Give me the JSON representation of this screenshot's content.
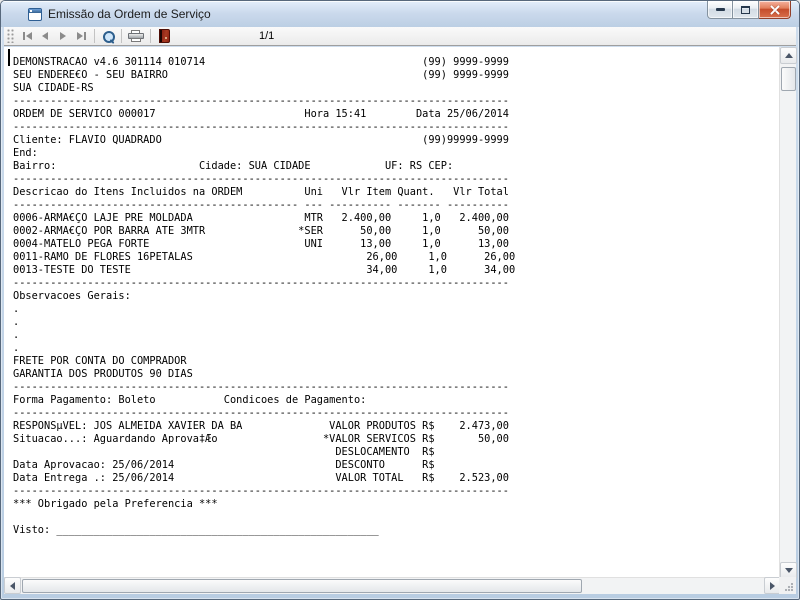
{
  "window": {
    "title": "Emissão da Ordem de Serviço",
    "page_indicator": "1/1",
    "accent_colors": {
      "titlebar": "#cad9ec",
      "close_button": "#c44c2b",
      "exit_door_icon": "#8f2412",
      "zoom_lens_icon": "#2d5f8d"
    }
  },
  "toolbar_icons": [
    "first-page-icon",
    "previous-page-icon",
    "next-page-icon",
    "last-page-icon",
    "zoom-icon",
    "print-icon",
    "exit-icon"
  ],
  "report": {
    "lines": [
      "DEMONSTRACAO v4.6 301114 010714                                   (99) 9999-9999",
      "SEU ENDERE€O - SEU BAIRRO                                         (99) 9999-9999",
      "SUA CIDADE-RS",
      "--------------------------------------------------------------------------------",
      "ORDEM DE SERVICO 000017                        Hora 15:41        Data 25/06/2014",
      "--------------------------------------------------------------------------------",
      "Cliente: FLAVIO QUADRADO                                          (99)99999-9999",
      "End:",
      "Bairro:                       Cidade: SUA CIDADE            UF: RS CEP:",
      "--------------------------------------------------------------------------------",
      "Descricao do Itens Incluidos na ORDEM          Uni   Vlr Item Quant.   Vlr Total",
      "---------------------------------------------- --- ---------- ------- ----------",
      "0006-ARMA€ÇO LAJE PRE MOLDADA                  MTR   2.400,00     1,0   2.400,00",
      "0002-ARMA€ÇO POR BARRA ATE 3MTR               *SER      50,00     1,0      50,00",
      "0004-MATELO PEGA FORTE                         UNI      13,00     1,0      13,00",
      "0011-RAMO DE FLORES 16PETALAS                            26,00     1,0      26,00",
      "0013-TESTE DO TESTE                                      34,00     1,0      34,00",
      "--------------------------------------------------------------------------------",
      "Observacoes Gerais:",
      ".",
      ".",
      ".",
      ".",
      "FRETE POR CONTA DO COMPRADOR",
      "GARANTIA DOS PRODUTOS 90 DIAS",
      "--------------------------------------------------------------------------------",
      "Forma Pagamento: Boleto           Condicoes de Pagamento:",
      "--------------------------------------------------------------------------------",
      "RESPONSµVEL: JOS ALMEIDA XAVIER DA BA              VALOR PRODUTOS R$    2.473,00",
      "Situacao...: Aguardando Aprova‡Æo                 *VALOR SERVICOS R$       50,00",
      "                                                    DESLOCAMENTO  R$",
      "Data Aprovacao: 25/06/2014                          DESCONTO      R$",
      "Data Entrega .: 25/06/2014                          VALOR TOTAL   R$    2.523,00",
      "--------------------------------------------------------------------------------",
      "*** Obrigado pela Preferencia ***",
      "",
      "Visto: ____________________________________________________"
    ]
  }
}
